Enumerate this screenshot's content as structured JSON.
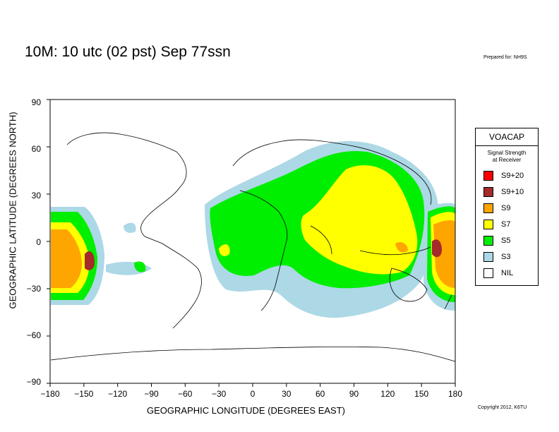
{
  "header": {
    "title": "10M:  10 utc (02 pst) Sep 77ssn",
    "prepared": "Prepared for: NH9S"
  },
  "footer": {
    "copyright": "Copyright 2012, K6TU"
  },
  "axes": {
    "xlabel": "GEOGRAPHIC LONGITUDE (DEGREES EAST)",
    "ylabel": "GEOGRAPHIC LATITUDE (DEGREES NORTH)",
    "xticks": [
      "−180",
      "−150",
      "−120",
      "−90",
      "−60",
      "−30",
      "0",
      "30",
      "60",
      "90",
      "120",
      "150",
      "180"
    ],
    "yticks": [
      "90",
      "60",
      "30",
      "0",
      "−30",
      "−60",
      "−90"
    ]
  },
  "legend": {
    "title": "VOACAP",
    "subtitle_line1": "Signal Strength",
    "subtitle_line2": "at Receiver",
    "items": [
      {
        "label": "S9+20",
        "color": "#ff0000"
      },
      {
        "label": "S9+10",
        "color": "#a52a2a"
      },
      {
        "label": "S9",
        "color": "#ffa500"
      },
      {
        "label": "S7",
        "color": "#ffff00"
      },
      {
        "label": "S5",
        "color": "#00ee00"
      },
      {
        "label": "S3",
        "color": "#add8e6"
      },
      {
        "label": "NIL",
        "color": "#ffffff"
      }
    ]
  },
  "colors": {
    "s9_10": "#a52a2a",
    "s9": "#ffa500",
    "s7": "#ffff00",
    "s5": "#00ee00",
    "s3": "#add8e6",
    "coast": "#000000"
  }
}
